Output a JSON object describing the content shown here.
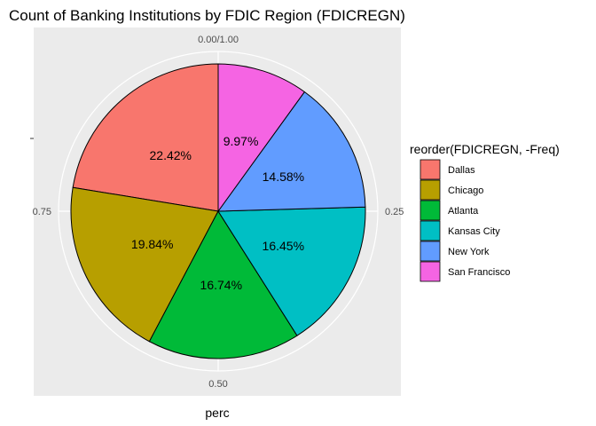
{
  "chart_data": {
    "type": "pie",
    "title": "Count of Banking Institutions by FDIC Region (FDICREGN)",
    "xlabel": "perc",
    "ylabel": "",
    "polar_ticks": [
      "0.00/1.00",
      "0.25",
      "0.50",
      "0.75"
    ],
    "legend": {
      "title": "reorder(FDICREGN, -Freq)",
      "placement": "right"
    },
    "slices": [
      {
        "name": "Dallas",
        "value": 22.42,
        "label": "22.42%",
        "color": "#F8766D"
      },
      {
        "name": "Chicago",
        "value": 19.84,
        "label": "19.84%",
        "color": "#B79F00"
      },
      {
        "name": "Atlanta",
        "value": 16.74,
        "label": "16.74%",
        "color": "#00BA38"
      },
      {
        "name": "Kansas City",
        "value": 16.45,
        "label": "16.45%",
        "color": "#00BFC4"
      },
      {
        "name": "New York",
        "value": 14.58,
        "label": "14.58%",
        "color": "#619CFF"
      },
      {
        "name": "San Francisco",
        "value": 9.97,
        "label": "9.97%",
        "color": "#F564E3"
      }
    ],
    "panel_background": "#EBEBEB",
    "grid": true
  }
}
